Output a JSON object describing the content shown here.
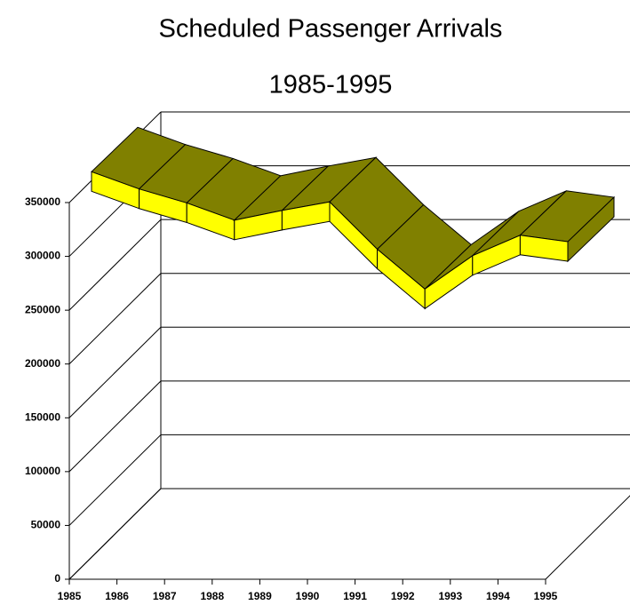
{
  "chart_data": {
    "type": "ribbon3d",
    "title": "Scheduled Passenger Arrivals",
    "subtitle": "1985-1995",
    "categories": [
      "1985",
      "1986",
      "1987",
      "1988",
      "1989",
      "1990",
      "1991",
      "1992",
      "1993",
      "1994",
      "1995"
    ],
    "values": [
      358000,
      342000,
      329000,
      313000,
      322000,
      330000,
      286000,
      249000,
      280000,
      299000,
      293000
    ],
    "ylim": [
      0,
      350000
    ],
    "yticks": [
      0,
      50000,
      100000,
      150000,
      200000,
      250000,
      300000,
      350000
    ],
    "grid": true,
    "color": "#ffff00",
    "top_color": "#808000"
  }
}
